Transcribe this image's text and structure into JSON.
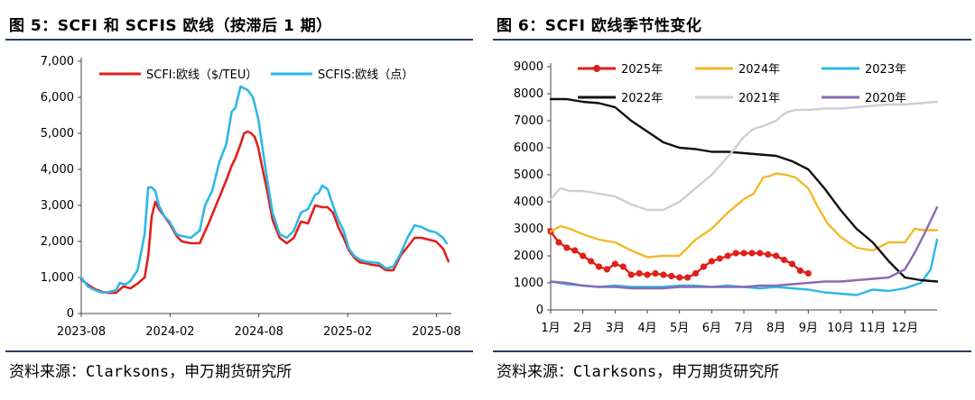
{
  "figures": {
    "left": {
      "title": "图 5：SCFI 和 SCFIS 欧线（按滞后 1 期）",
      "source": "资料来源：Clarksons，申万期货研究所"
    },
    "right": {
      "title": "图 6：SCFI 欧线季节性变化",
      "source": "资料来源：Clarksons，申万期货研究所"
    }
  },
  "chart_data": [
    {
      "type": "line",
      "title": "",
      "xlabel": "",
      "ylabel": "",
      "ylim": [
        0,
        7000
      ],
      "yticks": [
        0,
        1000,
        2000,
        3000,
        4000,
        5000,
        6000,
        7000
      ],
      "ytick_labels": [
        "0",
        "1,000",
        "2,000",
        "3,000",
        "4,000",
        "5,000",
        "6,000",
        "7,000"
      ],
      "xlim": [
        2023.583,
        2025.667
      ],
      "xticks": [
        2023.583,
        2024.083,
        2024.583,
        2025.083,
        2025.583
      ],
      "xtick_labels": [
        "2023-08",
        "2024-02",
        "2024-08",
        "2025-02",
        "2025-08"
      ],
      "grid": false,
      "legend": "top",
      "series": [
        {
          "name": "SCFI:欧线（$/TEU）",
          "color": "#e0201b",
          "x": [
            2023.583,
            2023.62,
            2023.66,
            2023.7,
            2023.74,
            2023.78,
            2023.82,
            2023.86,
            2023.9,
            2023.94,
            2023.96,
            2023.98,
            2024.0,
            2024.02,
            2024.05,
            2024.08,
            2024.12,
            2024.15,
            2024.2,
            2024.25,
            2024.3,
            2024.35,
            2024.4,
            2024.43,
            2024.45,
            2024.48,
            2024.5,
            2024.52,
            2024.54,
            2024.56,
            2024.58,
            2024.6,
            2024.63,
            2024.66,
            2024.7,
            2024.74,
            2024.78,
            2024.82,
            2024.86,
            2024.9,
            2024.94,
            2024.97,
            2025.0,
            2025.03,
            2025.06,
            2025.09,
            2025.12,
            2025.15,
            2025.18,
            2025.22,
            2025.26,
            2025.3,
            2025.34,
            2025.38,
            2025.42,
            2025.46,
            2025.5,
            2025.54,
            2025.58,
            2025.62,
            2025.65
          ],
          "values": [
            950,
            800,
            680,
            600,
            570,
            580,
            750,
            700,
            830,
            1000,
            1600,
            2700,
            3100,
            2900,
            2700,
            2500,
            2150,
            2000,
            1950,
            1950,
            2500,
            3100,
            3700,
            4100,
            4300,
            4700,
            5000,
            5050,
            5000,
            4900,
            4600,
            4100,
            3400,
            2600,
            2100,
            1950,
            2100,
            2550,
            2500,
            3000,
            2950,
            2950,
            2800,
            2400,
            2100,
            1750,
            1550,
            1420,
            1400,
            1350,
            1330,
            1200,
            1200,
            1600,
            1850,
            2100,
            2100,
            2050,
            2000,
            1800,
            1450
          ]
        },
        {
          "name": "SCFIS:欧线（点）",
          "color": "#2db8e6",
          "x": [
            2023.583,
            2023.62,
            2023.66,
            2023.7,
            2023.74,
            2023.78,
            2023.8,
            2023.83,
            2023.86,
            2023.9,
            2023.94,
            2023.96,
            2023.98,
            2024.0,
            2024.02,
            2024.05,
            2024.08,
            2024.12,
            2024.15,
            2024.2,
            2024.25,
            2024.28,
            2024.32,
            2024.36,
            2024.4,
            2024.43,
            2024.45,
            2024.48,
            2024.5,
            2024.52,
            2024.55,
            2024.58,
            2024.6,
            2024.63,
            2024.66,
            2024.7,
            2024.74,
            2024.78,
            2024.82,
            2024.86,
            2024.9,
            2024.92,
            2024.94,
            2024.97,
            2025.0,
            2025.03,
            2025.06,
            2025.09,
            2025.12,
            2025.15,
            2025.18,
            2025.22,
            2025.26,
            2025.3,
            2025.34,
            2025.38,
            2025.42,
            2025.46,
            2025.5,
            2025.54,
            2025.58,
            2025.62,
            2025.64
          ],
          "values": [
            1000,
            750,
            650,
            580,
            600,
            650,
            850,
            800,
            900,
            1200,
            2200,
            3500,
            3500,
            3400,
            3000,
            2700,
            2550,
            2200,
            2150,
            2100,
            2300,
            3000,
            3400,
            4200,
            4700,
            5600,
            5700,
            6300,
            6250,
            6200,
            6000,
            5400,
            4700,
            3700,
            2800,
            2200,
            2100,
            2300,
            2800,
            2900,
            3300,
            3350,
            3550,
            3450,
            3000,
            2600,
            2300,
            1800,
            1600,
            1500,
            1450,
            1420,
            1400,
            1250,
            1300,
            1650,
            2100,
            2450,
            2400,
            2300,
            2250,
            2100,
            1950
          ]
        }
      ]
    },
    {
      "type": "line",
      "title": "",
      "xlabel": "",
      "ylabel": "",
      "ylim": [
        0,
        9000
      ],
      "yticks": [
        0,
        1000,
        2000,
        3000,
        4000,
        5000,
        6000,
        7000,
        8000,
        9000
      ],
      "ytick_labels": [
        "0",
        "1000",
        "2000",
        "3000",
        "4000",
        "5000",
        "6000",
        "7000",
        "8000",
        "9000"
      ],
      "xlim": [
        1,
        13
      ],
      "xticks": [
        1,
        2,
        3,
        4,
        5,
        6,
        7,
        8,
        9,
        10,
        11,
        12
      ],
      "xtick_labels": [
        "1月",
        "2月",
        "3月",
        "4月",
        "5月",
        "6月",
        "7月",
        "8月",
        "9月",
        "10月",
        "11月",
        "12月"
      ],
      "grid": false,
      "legend": "top",
      "series": [
        {
          "name": "2025年",
          "color": "#e0201b",
          "marker": "circle",
          "x": [
            1.0,
            1.25,
            1.5,
            1.75,
            2.0,
            2.25,
            2.5,
            2.75,
            3.0,
            3.25,
            3.5,
            3.75,
            4.0,
            4.25,
            4.5,
            4.75,
            5.0,
            5.25,
            5.5,
            5.75,
            6.0,
            6.25,
            6.5,
            6.75,
            7.0,
            7.25,
            7.5,
            7.75,
            8.0,
            8.25,
            8.5,
            8.75,
            9.0
          ],
          "values": [
            2900,
            2500,
            2300,
            2200,
            2000,
            1800,
            1600,
            1500,
            1700,
            1600,
            1300,
            1350,
            1300,
            1350,
            1300,
            1250,
            1200,
            1200,
            1350,
            1600,
            1800,
            1900,
            2000,
            2100,
            2100,
            2100,
            2100,
            2050,
            2000,
            1850,
            1700,
            1450,
            1350
          ]
        },
        {
          "name": "2024年",
          "color": "#f2b928",
          "x": [
            1.0,
            1.3,
            1.6,
            2.0,
            2.5,
            3.0,
            3.5,
            4.0,
            4.5,
            5.0,
            5.5,
            6.0,
            6.5,
            7.0,
            7.3,
            7.6,
            7.8,
            8.0,
            8.3,
            8.6,
            9.0,
            9.3,
            9.6,
            10.0,
            10.5,
            11.0,
            11.5,
            12.0,
            12.3,
            12.6,
            13.0
          ],
          "values": [
            2900,
            3100,
            3000,
            2800,
            2600,
            2500,
            2200,
            1950,
            2000,
            2000,
            2600,
            3000,
            3600,
            4100,
            4300,
            4900,
            4950,
            5050,
            5000,
            4900,
            4500,
            3800,
            3200,
            2700,
            2300,
            2200,
            2500,
            2500,
            3000,
            2950,
            2950
          ]
        },
        {
          "name": "2023年",
          "color": "#2db8e6",
          "x": [
            1.0,
            1.5,
            2.0,
            2.5,
            3.0,
            3.5,
            4.0,
            4.5,
            5.0,
            5.5,
            6.0,
            6.5,
            7.0,
            7.5,
            8.0,
            8.5,
            9.0,
            9.5,
            10.0,
            10.5,
            11.0,
            11.5,
            12.0,
            12.5,
            12.8,
            13.0
          ],
          "values": [
            1050,
            950,
            900,
            850,
            900,
            850,
            850,
            850,
            900,
            900,
            850,
            900,
            850,
            800,
            850,
            800,
            750,
            650,
            600,
            550,
            750,
            700,
            800,
            1000,
            1500,
            2600
          ]
        },
        {
          "name": "2022年",
          "color": "#111111",
          "x": [
            1.0,
            1.5,
            2.0,
            2.5,
            3.0,
            3.5,
            4.0,
            4.5,
            5.0,
            5.5,
            6.0,
            6.5,
            7.0,
            7.5,
            8.0,
            8.5,
            9.0,
            9.5,
            10.0,
            10.5,
            11.0,
            11.5,
            12.0,
            12.5,
            13.0
          ],
          "values": [
            7800,
            7800,
            7700,
            7650,
            7500,
            7000,
            6600,
            6200,
            6000,
            5950,
            5850,
            5850,
            5800,
            5750,
            5700,
            5500,
            5200,
            4500,
            3700,
            3000,
            2500,
            1800,
            1200,
            1100,
            1050
          ]
        },
        {
          "name": "2021年",
          "color": "#cfcfcf",
          "x": [
            1.0,
            1.3,
            1.6,
            2.0,
            2.5,
            3.0,
            3.5,
            4.0,
            4.5,
            5.0,
            5.5,
            6.0,
            6.3,
            6.6,
            7.0,
            7.3,
            7.6,
            8.0,
            8.3,
            8.6,
            9.0,
            9.5,
            10.0,
            10.5,
            11.0,
            11.5,
            12.0,
            12.5,
            13.0
          ],
          "values": [
            4100,
            4500,
            4400,
            4400,
            4300,
            4200,
            3900,
            3700,
            3700,
            4000,
            4500,
            5000,
            5400,
            5800,
            6400,
            6700,
            6800,
            7000,
            7300,
            7400,
            7400,
            7450,
            7450,
            7500,
            7550,
            7600,
            7600,
            7650,
            7700
          ]
        },
        {
          "name": "2020年",
          "color": "#8a6bb1",
          "x": [
            1.0,
            1.5,
            2.0,
            2.5,
            3.0,
            3.5,
            4.0,
            4.5,
            5.0,
            5.5,
            6.0,
            6.5,
            7.0,
            7.5,
            8.0,
            8.5,
            9.0,
            9.5,
            10.0,
            10.5,
            11.0,
            11.5,
            12.0,
            12.3,
            12.6,
            13.0
          ],
          "values": [
            1050,
            1000,
            900,
            850,
            850,
            800,
            800,
            800,
            850,
            850,
            850,
            850,
            850,
            900,
            900,
            950,
            1000,
            1050,
            1050,
            1100,
            1150,
            1200,
            1500,
            2100,
            2800,
            3800
          ]
        }
      ]
    }
  ]
}
